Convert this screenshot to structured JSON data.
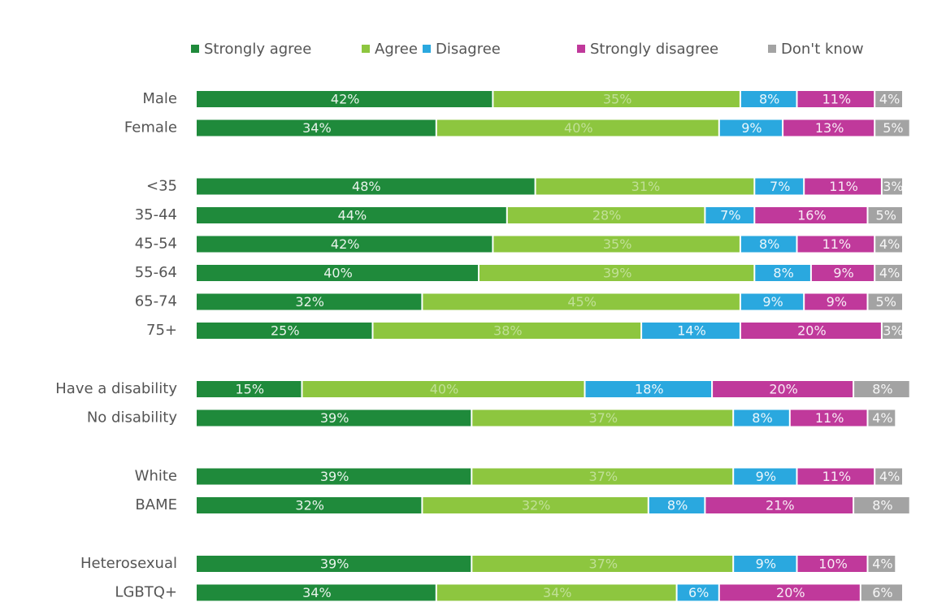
{
  "chart_data": {
    "type": "stacked-bar-horizontal",
    "categories": [
      "Male",
      "Female",
      "<35",
      "35-44",
      "45-54",
      "55-64",
      "65-74",
      "75+",
      "Have a disability",
      "No disability",
      "White",
      "BAME",
      "Heterosexual",
      "LGBTQ+"
    ],
    "xlim": [
      0,
      100
    ],
    "legend": "top",
    "series": [
      {
        "name": "Strongly agree",
        "color": "#1f8a3b",
        "values": [
          42,
          34,
          48,
          44,
          42,
          40,
          32,
          25,
          15,
          39,
          39,
          32,
          39,
          34
        ],
        "value_labels": [
          "42%",
          "34%",
          "48%",
          "44%",
          "42%",
          "40%",
          "32%",
          "25%",
          "15%",
          "39%",
          "39%",
          "32%",
          "39%",
          "34%"
        ]
      },
      {
        "name": "Agree",
        "color": "#8dc63f",
        "values": [
          35,
          40,
          31,
          28,
          35,
          39,
          45,
          38,
          40,
          37,
          37,
          32,
          37,
          34
        ],
        "value_labels": [
          "35%",
          "40%",
          "31%",
          "28%",
          "35%",
          "39%",
          "45%",
          "38%",
          "40%",
          "37%",
          "37%",
          "32%",
          "37%",
          "34%"
        ]
      },
      {
        "name": "Disagree",
        "color": "#2aa8df",
        "values": [
          8,
          9,
          7,
          7,
          8,
          8,
          9,
          14,
          18,
          8,
          9,
          8,
          9,
          6
        ],
        "value_labels": [
          "8%",
          "9%",
          "7%",
          "7%",
          "8%",
          "8%",
          "9%",
          "14%",
          "18%",
          "8%",
          "9%",
          "8%",
          "9%",
          "6%"
        ]
      },
      {
        "name": "Strongly disagree",
        "color": "#c0399b",
        "values": [
          11,
          13,
          11,
          16,
          11,
          9,
          9,
          20,
          20,
          11,
          11,
          21,
          10,
          20
        ],
        "value_labels": [
          "11%",
          "13%",
          "11%",
          "16%",
          "11%",
          "9%",
          "9%",
          "20%",
          "20%",
          "11%",
          "11%",
          "21%",
          "10%",
          "20%"
        ]
      },
      {
        "name": "Don't know",
        "color": "#a3a3a3",
        "values": [
          4,
          5,
          3,
          5,
          4,
          4,
          5,
          3,
          8,
          4,
          4,
          8,
          4,
          6
        ],
        "value_labels": [
          "4%",
          "5%",
          "3%",
          "5%",
          "4%",
          "4%",
          "5%",
          "3%",
          "8%",
          "4%",
          "4%",
          "8%",
          "4%",
          "6%"
        ]
      }
    ]
  }
}
